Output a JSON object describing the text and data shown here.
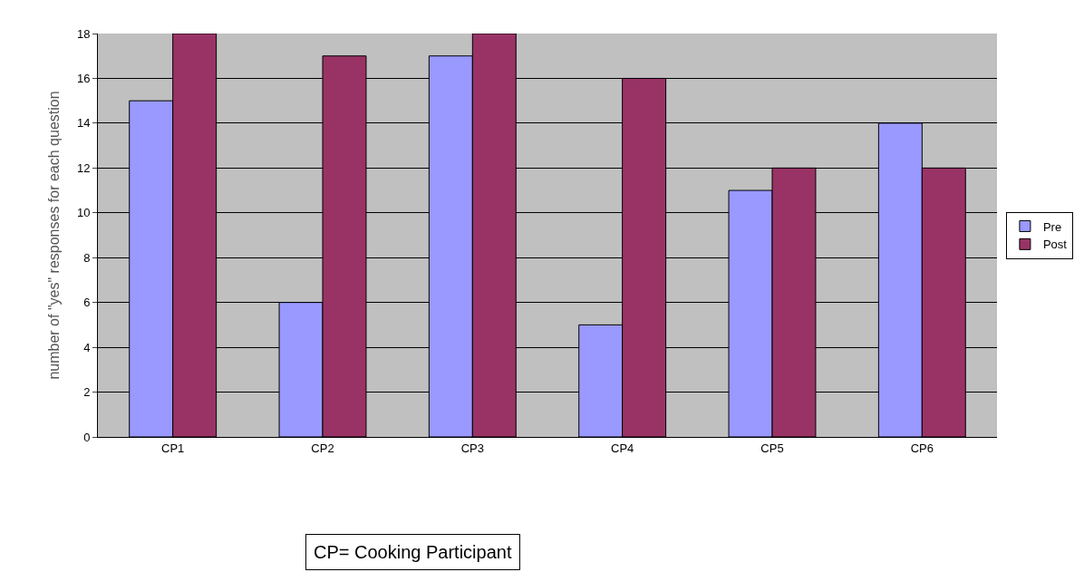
{
  "chart_data": {
    "type": "bar",
    "ylabel": "number of \"yes\" responses for each question",
    "categories": [
      "CP1",
      "CP2",
      "CP3",
      "CP4",
      "CP5",
      "CP6"
    ],
    "series": [
      {
        "name": "Pre",
        "color": "#9999ff",
        "values": [
          15,
          6,
          17,
          5,
          11,
          14
        ]
      },
      {
        "name": "Post",
        "color": "#993366",
        "values": [
          18,
          17,
          18,
          16,
          12,
          12
        ]
      }
    ],
    "ylim": [
      0,
      18
    ],
    "yticks": [
      0,
      2,
      4,
      6,
      8,
      10,
      12,
      14,
      16,
      18
    ],
    "grid": "y",
    "legend": "right",
    "annotations": [
      "CP= Cooking Participant"
    ]
  }
}
